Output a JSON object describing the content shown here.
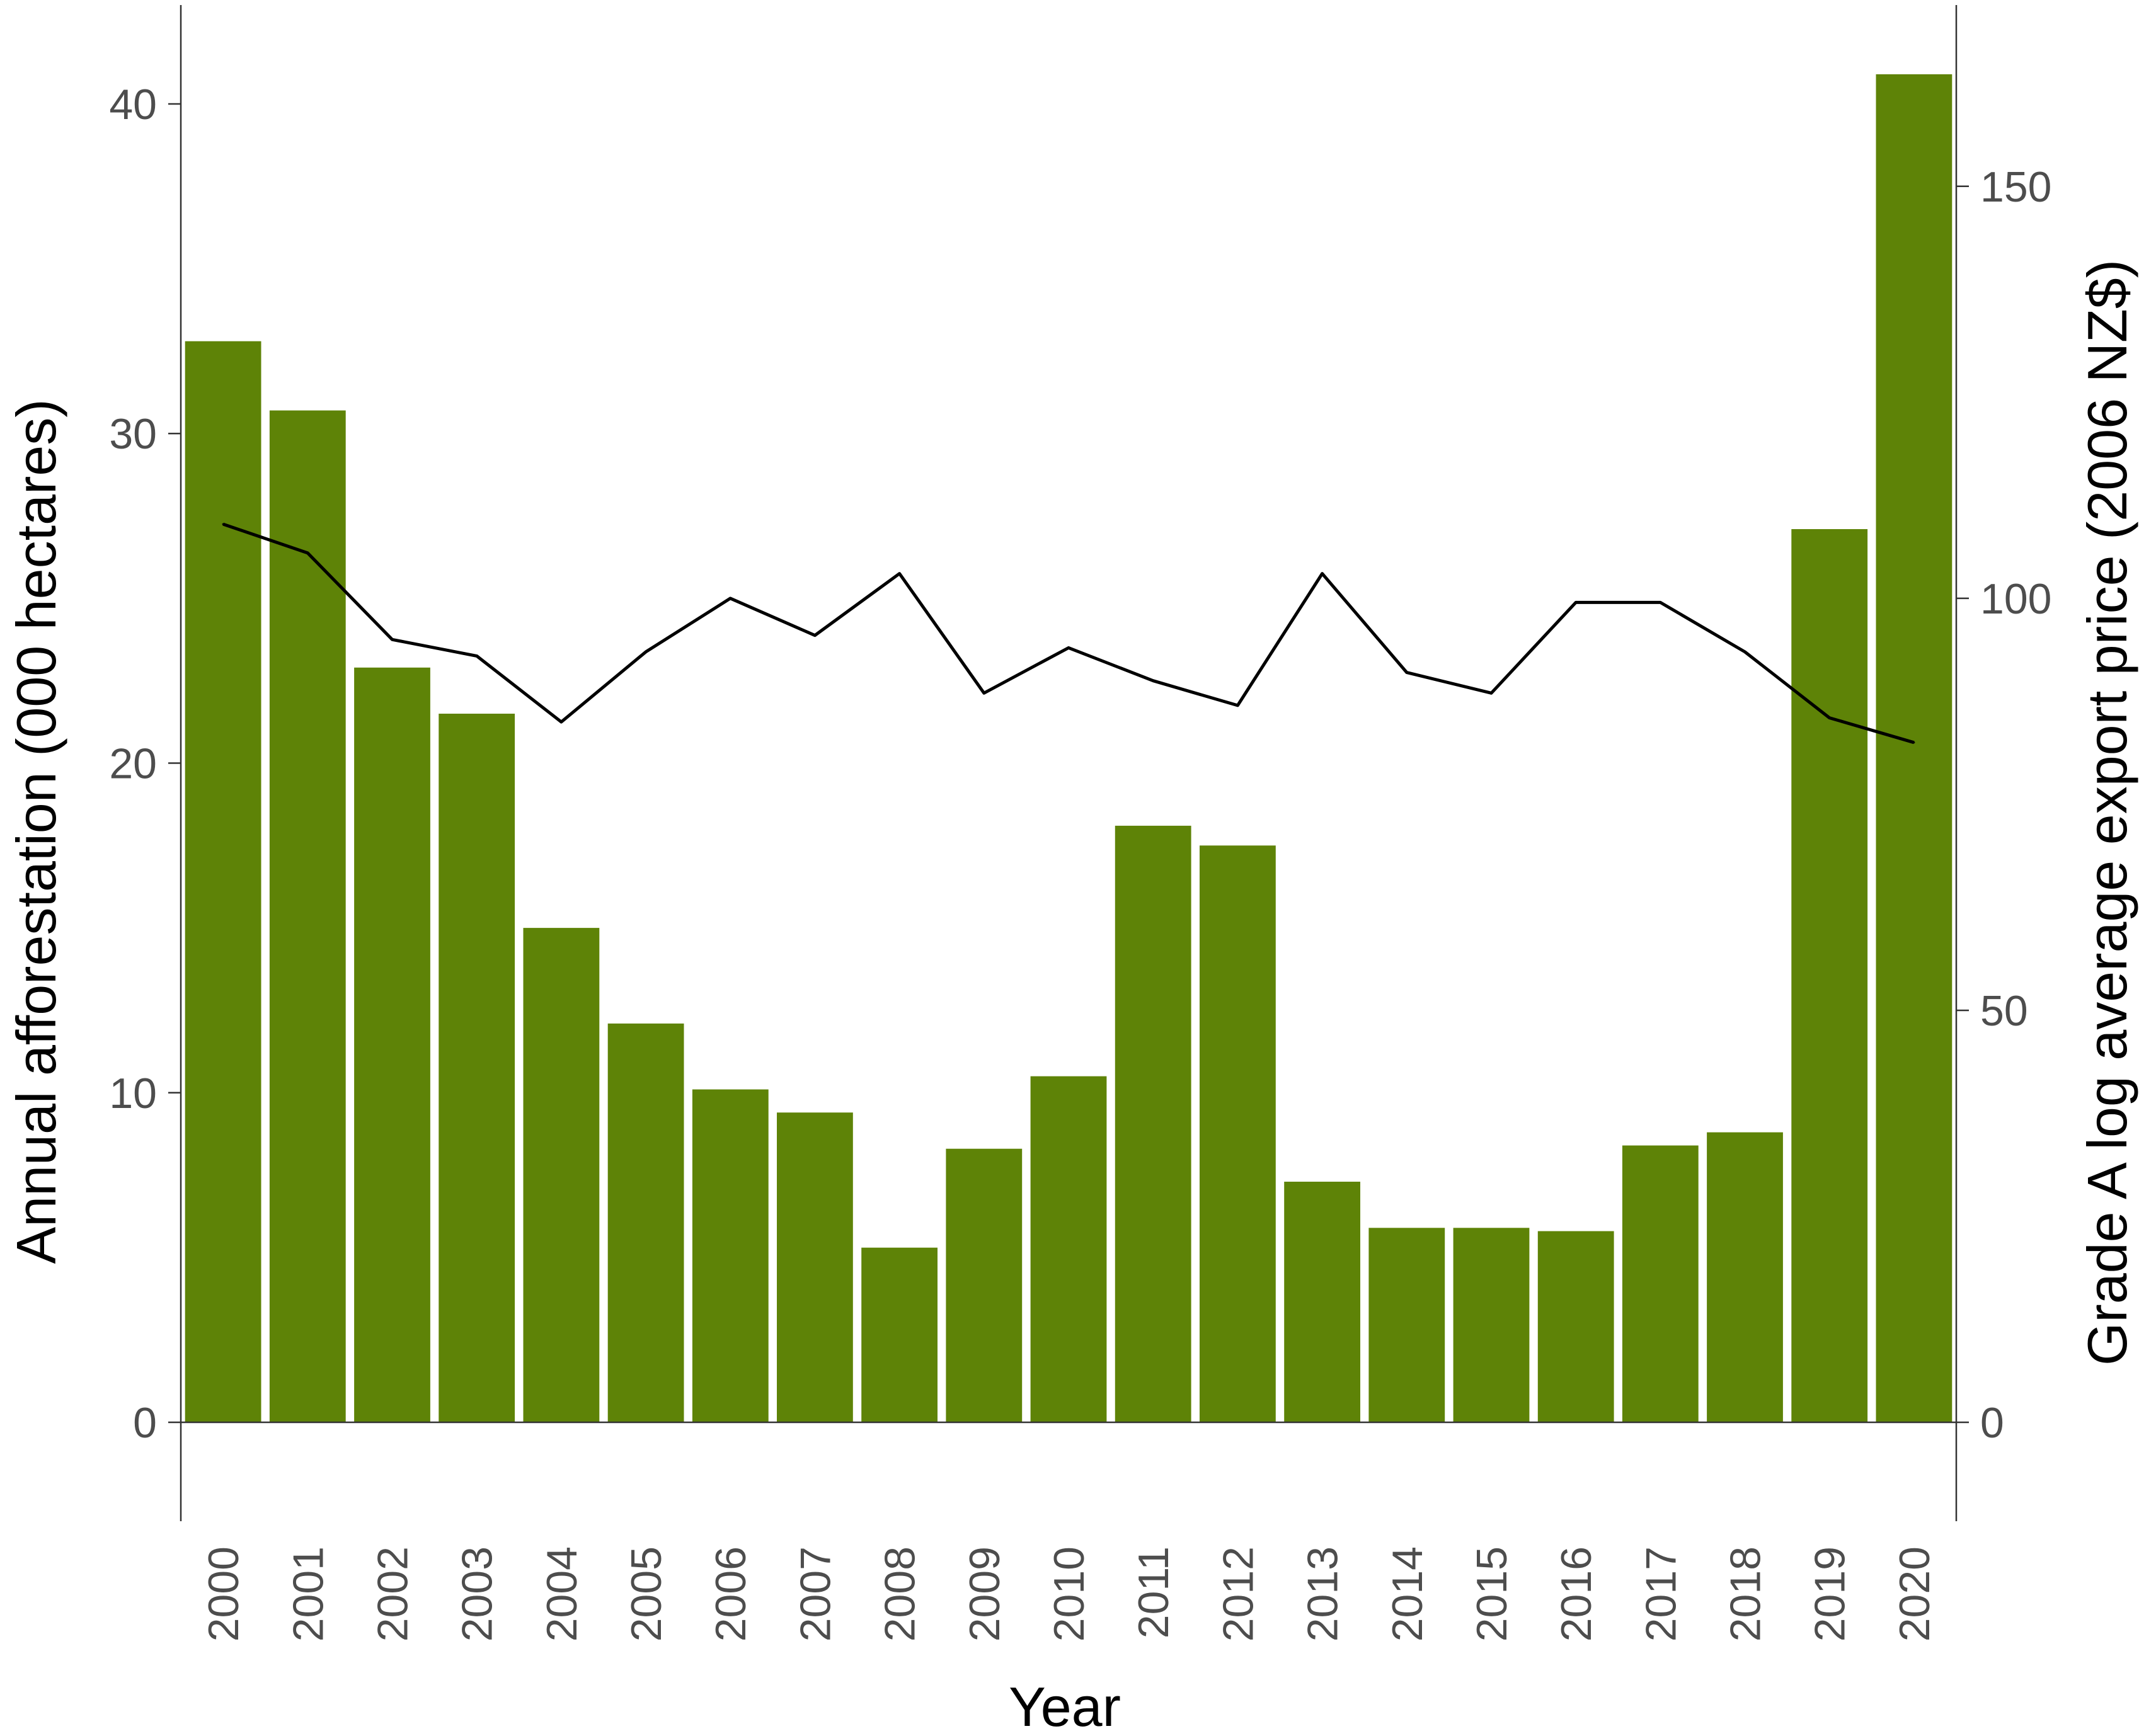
{
  "chart_data": {
    "type": "bar",
    "title": "",
    "xlabel": "Year",
    "ylabel": "Annual afforestation (000 hectares)",
    "y2label": "Grade A log average export price (2006 NZ$)",
    "categories": [
      "2000",
      "2001",
      "2002",
      "2003",
      "2004",
      "2005",
      "2006",
      "2007",
      "2008",
      "2009",
      "2010",
      "2011",
      "2012",
      "2013",
      "2014",
      "2015",
      "2016",
      "2017",
      "2018",
      "2019",
      "2020"
    ],
    "series": [
      {
        "type": "bar",
        "axis": "left",
        "color": "#5e8307",
        "values": [
          32.8,
          30.7,
          22.9,
          21.5,
          15.0,
          12.1,
          10.1,
          9.4,
          5.3,
          8.3,
          10.5,
          18.1,
          17.5,
          7.3,
          5.9,
          5.9,
          5.8,
          8.4,
          8.8,
          27.1,
          40.9
        ]
      },
      {
        "type": "line",
        "axis": "right",
        "color": "#000000",
        "values": [
          109,
          105.5,
          95,
          93,
          85,
          93.5,
          100,
          95.5,
          103,
          88.5,
          94,
          90,
          87,
          103,
          91,
          88.5,
          99.5,
          99.5,
          93.5,
          85.5,
          82.5
        ]
      }
    ],
    "ylim": [
      -3,
      43
    ],
    "yticks": [
      0,
      10,
      20,
      30,
      40
    ],
    "y2lim": [
      -12,
      172
    ],
    "y2ticks": [
      0,
      50,
      100,
      150
    ],
    "grid": false,
    "legend": "none"
  }
}
